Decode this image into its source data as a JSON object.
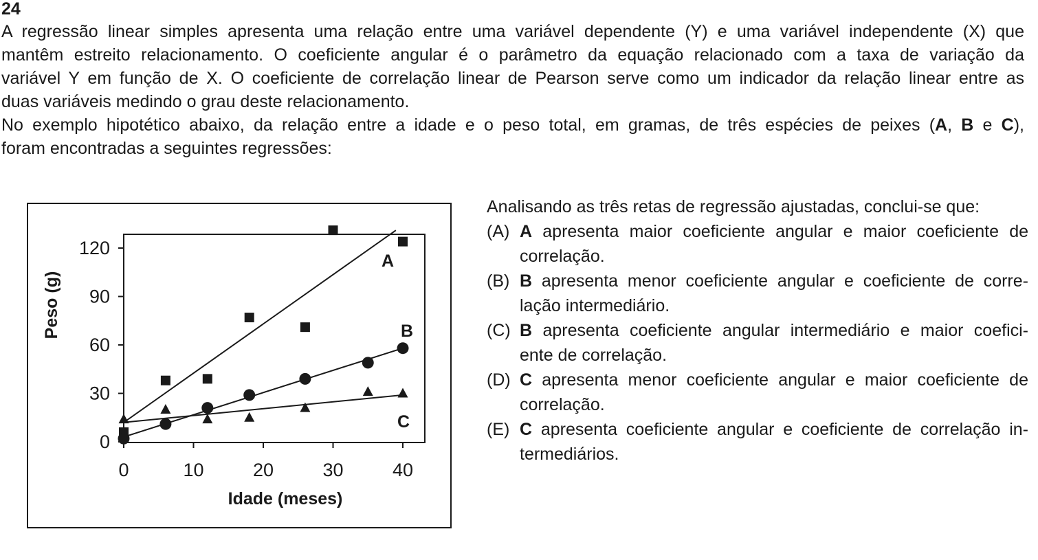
{
  "question": {
    "number": "24",
    "paragraph1": [
      "A regressão linear simples apresenta uma relação entre uma variável dependente (Y) e uma variável independente (X) que",
      "mantêm estreito relacionamento. O coeficiente angular é o parâmetro da equação relacionado com a taxa de variação da",
      "variável Y em função de X. O coeficiente de correlação linear de Pearson serve como um indicador da relação linear entre as",
      "duas variáveis medindo o grau deste relacionamento."
    ],
    "paragraph2_line1_start": "No exemplo hipotético abaixo, da relação entre a idade e o peso total, em gramas, de três espécies de peixes (",
    "paragraph2_A": "A",
    "paragraph2_sep1": ", ",
    "paragraph2_B": "B",
    "paragraph2_sep2": " e ",
    "paragraph2_C": "C",
    "paragraph2_end": "),",
    "paragraph2_line2": "foram encontradas a seguintes regressões:",
    "lead": "Analisando as três retas de regressão ajustadas, conclui-se que:",
    "options": [
      {
        "label": "(A)",
        "letter": "A",
        "lines": [
          " apresenta maior coeficiente angular e maior coeficiente de",
          "correlação."
        ]
      },
      {
        "label": "(B)",
        "letter": "B",
        "lines": [
          " apresenta menor coeficiente angular e coeficiente de corre-",
          "lação intermediário."
        ]
      },
      {
        "label": "(C)",
        "letter": "B",
        "lines": [
          " apresenta coeficiente angular intermediário e maior coefici-",
          "ente de correlação."
        ]
      },
      {
        "label": "(D)",
        "letter": "C",
        "lines": [
          " apresenta menor coeficiente angular e maior coeficiente de",
          "correlação."
        ]
      },
      {
        "label": "(E)",
        "letter": "C",
        "lines": [
          " apresenta coeficiente angular e coeficiente de correlação in-",
          "termediários."
        ]
      }
    ]
  },
  "chart_data": {
    "type": "scatter",
    "title": "",
    "xlabel": "Idade (meses)",
    "ylabel": "Peso (g)",
    "xlim": [
      0,
      43
    ],
    "ylim": [
      0,
      130
    ],
    "xticks": [
      0,
      10,
      20,
      30,
      40
    ],
    "yticks": [
      0,
      30,
      60,
      90,
      120
    ],
    "grid": false,
    "series": [
      {
        "name": "A",
        "marker": "square",
        "points": [
          [
            0,
            6
          ],
          [
            6,
            38
          ],
          [
            12,
            39
          ],
          [
            18,
            77
          ],
          [
            26,
            71
          ],
          [
            30,
            131
          ],
          [
            40,
            124
          ]
        ],
        "fit": [
          [
            0,
            12
          ],
          [
            39,
            131
          ]
        ]
      },
      {
        "name": "B",
        "marker": "circle",
        "points": [
          [
            0,
            2
          ],
          [
            6,
            11
          ],
          [
            12,
            21
          ],
          [
            18,
            29
          ],
          [
            26,
            39
          ],
          [
            35,
            49
          ],
          [
            40,
            58
          ]
        ],
        "fit": [
          [
            0,
            3
          ],
          [
            40,
            58
          ]
        ]
      },
      {
        "name": "C",
        "marker": "triangle",
        "points": [
          [
            0,
            14
          ],
          [
            6,
            20
          ],
          [
            12,
            14
          ],
          [
            18,
            15
          ],
          [
            26,
            21
          ],
          [
            35,
            31
          ],
          [
            40,
            30
          ]
        ],
        "fit": [
          [
            0,
            12
          ],
          [
            40,
            29
          ]
        ]
      }
    ]
  }
}
